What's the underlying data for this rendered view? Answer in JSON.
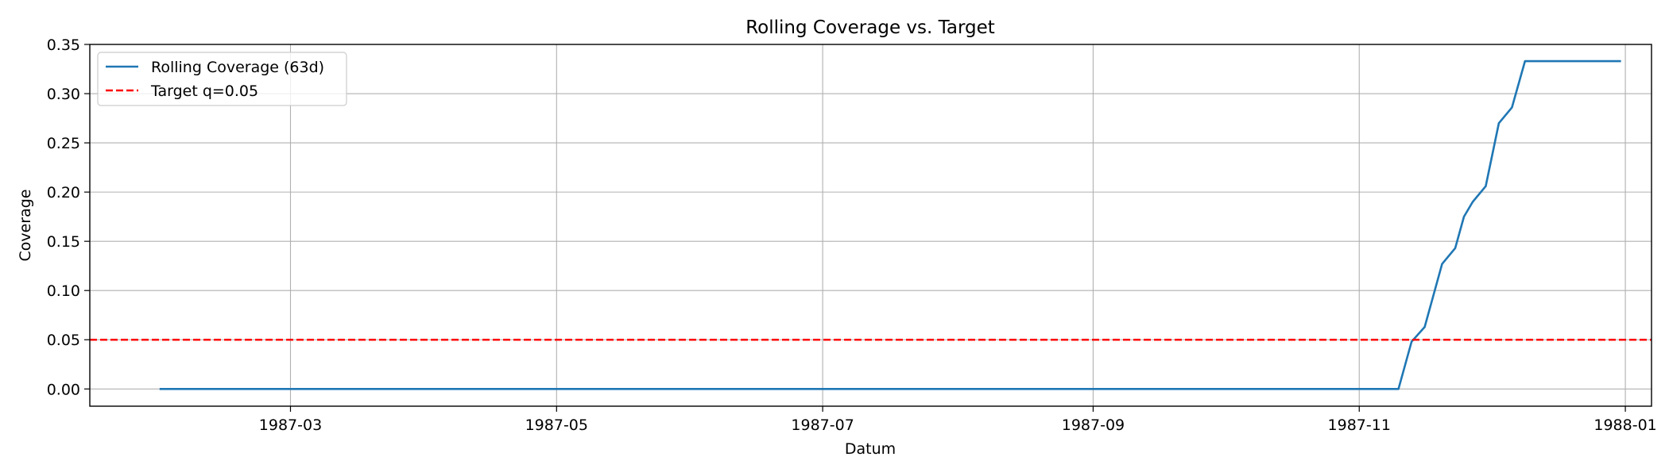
{
  "chart_data": {
    "type": "line",
    "title": "Rolling Coverage vs. Target",
    "xlabel": "Datum",
    "ylabel": "Coverage",
    "xlim": [
      "1987-01-14",
      "1988-01-07"
    ],
    "ylim": [
      -0.0175,
      0.35
    ],
    "grid": true,
    "legend_position": "top-left",
    "x_ticks": [
      "1987-03",
      "1987-05",
      "1987-07",
      "1987-09",
      "1987-11",
      "1988-01"
    ],
    "y_ticks": [
      "0.00",
      "0.05",
      "0.10",
      "0.15",
      "0.20",
      "0.25",
      "0.30",
      "0.35"
    ],
    "series": [
      {
        "name": "Rolling Coverage (63d)",
        "color": "#1f77b4",
        "style": "solid",
        "points": [
          {
            "x": "1987-01-30",
            "y": 0.0
          },
          {
            "x": "1987-11-10",
            "y": 0.0
          },
          {
            "x": "1987-11-13",
            "y": 0.048
          },
          {
            "x": "1987-11-16",
            "y": 0.063
          },
          {
            "x": "1987-11-20",
            "y": 0.127
          },
          {
            "x": "1987-11-23",
            "y": 0.143
          },
          {
            "x": "1987-11-25",
            "y": 0.175
          },
          {
            "x": "1987-11-27",
            "y": 0.19
          },
          {
            "x": "1987-11-30",
            "y": 0.206
          },
          {
            "x": "1987-12-03",
            "y": 0.27
          },
          {
            "x": "1987-12-06",
            "y": 0.286
          },
          {
            "x": "1987-12-09",
            "y": 0.333
          },
          {
            "x": "1987-12-31",
            "y": 0.333
          }
        ]
      },
      {
        "name": "Target q=0.05",
        "color": "#ff0000",
        "style": "dashed",
        "constant_y": 0.05
      }
    ]
  }
}
